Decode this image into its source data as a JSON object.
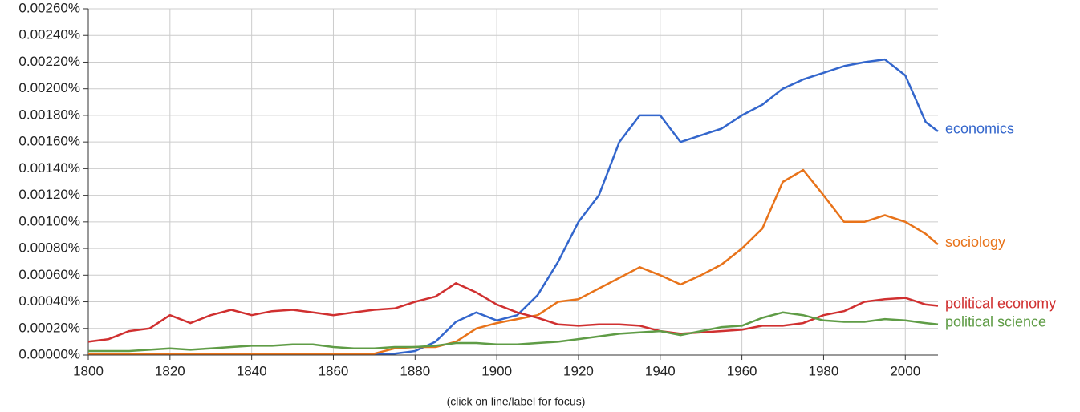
{
  "chart_data": {
    "type": "line",
    "footnote": "(click on line/label for focus)",
    "x": [
      1800,
      1805,
      1810,
      1815,
      1820,
      1825,
      1830,
      1835,
      1840,
      1845,
      1850,
      1855,
      1860,
      1865,
      1870,
      1875,
      1880,
      1885,
      1890,
      1895,
      1900,
      1905,
      1910,
      1915,
      1920,
      1925,
      1930,
      1935,
      1940,
      1945,
      1950,
      1955,
      1960,
      1965,
      1970,
      1975,
      1980,
      1985,
      1990,
      1995,
      2000,
      2005,
      2008
    ],
    "xlim": [
      1800,
      2008
    ],
    "xticks": [
      1800,
      1820,
      1840,
      1860,
      1880,
      1900,
      1920,
      1940,
      1960,
      1980,
      2000
    ],
    "ylim": [
      0,
      0.0026
    ],
    "yticks": [
      {
        "value": 0,
        "label": "0.00000%"
      },
      {
        "value": 0.0002,
        "label": "0.00020%"
      },
      {
        "value": 0.0004,
        "label": "0.00040%"
      },
      {
        "value": 0.0006,
        "label": "0.00060%"
      },
      {
        "value": 0.0008,
        "label": "0.00080%"
      },
      {
        "value": 0.001,
        "label": "0.00100%"
      },
      {
        "value": 0.0012,
        "label": "0.00120%"
      },
      {
        "value": 0.0014,
        "label": "0.00140%"
      },
      {
        "value": 0.0016,
        "label": "0.00160%"
      },
      {
        "value": 0.0018,
        "label": "0.00180%"
      },
      {
        "value": 0.002,
        "label": "0.00200%"
      },
      {
        "value": 0.0022,
        "label": "0.00220%"
      },
      {
        "value": 0.0024,
        "label": "0.00240%"
      },
      {
        "value": 0.0026,
        "label": "0.00260%"
      }
    ],
    "grid": true,
    "series": [
      {
        "name": "economics",
        "color": "#3366cc",
        "values": [
          1e-05,
          1e-05,
          1e-05,
          1e-05,
          1e-05,
          1e-05,
          1e-05,
          1e-05,
          1e-05,
          1e-05,
          1e-05,
          1e-05,
          1e-05,
          1e-05,
          1e-05,
          1e-05,
          3e-05,
          0.0001,
          0.00025,
          0.00032,
          0.00026,
          0.0003,
          0.00045,
          0.0007,
          0.001,
          0.0012,
          0.0016,
          0.0018,
          0.0018,
          0.0016,
          0.00165,
          0.0017,
          0.0018,
          0.00188,
          0.002,
          0.00207,
          0.00212,
          0.00217,
          0.0022,
          0.00222,
          0.0021,
          0.00175,
          0.00168
        ]
      },
      {
        "name": "sociology",
        "color": "#e8731a",
        "values": [
          1e-05,
          1e-05,
          1e-05,
          1e-05,
          1e-05,
          1e-05,
          1e-05,
          1e-05,
          1e-05,
          1e-05,
          1e-05,
          1e-05,
          1e-05,
          1e-05,
          1e-05,
          5e-05,
          6e-05,
          6e-05,
          0.0001,
          0.0002,
          0.00024,
          0.00027,
          0.0003,
          0.0004,
          0.00042,
          0.0005,
          0.00058,
          0.00066,
          0.0006,
          0.00053,
          0.0006,
          0.00068,
          0.0008,
          0.00095,
          0.0013,
          0.00139,
          0.0012,
          0.001,
          0.001,
          0.00105,
          0.001,
          0.00091,
          0.00083
        ]
      },
      {
        "name": "political economy",
        "color": "#d03030",
        "values": [
          0.0001,
          0.00012,
          0.00018,
          0.0002,
          0.0003,
          0.00024,
          0.0003,
          0.00034,
          0.0003,
          0.00033,
          0.00034,
          0.00032,
          0.0003,
          0.00032,
          0.00034,
          0.00035,
          0.0004,
          0.00044,
          0.00054,
          0.00047,
          0.00038,
          0.00032,
          0.00028,
          0.00023,
          0.00022,
          0.00023,
          0.00023,
          0.00022,
          0.00018,
          0.00016,
          0.00017,
          0.00018,
          0.00019,
          0.00022,
          0.00022,
          0.00024,
          0.0003,
          0.00033,
          0.0004,
          0.00042,
          0.00043,
          0.00038,
          0.00037
        ]
      },
      {
        "name": "political science",
        "color": "#5f9c46",
        "values": [
          3e-05,
          3e-05,
          3e-05,
          4e-05,
          5e-05,
          4e-05,
          5e-05,
          6e-05,
          7e-05,
          7e-05,
          8e-05,
          8e-05,
          6e-05,
          5e-05,
          5e-05,
          6e-05,
          6e-05,
          7e-05,
          9e-05,
          9e-05,
          8e-05,
          8e-05,
          9e-05,
          0.0001,
          0.00012,
          0.00014,
          0.00016,
          0.00017,
          0.00018,
          0.00015,
          0.00018,
          0.00021,
          0.00022,
          0.00028,
          0.00032,
          0.0003,
          0.00026,
          0.00025,
          0.00025,
          0.00027,
          0.00026,
          0.00024,
          0.00023
        ]
      }
    ]
  }
}
